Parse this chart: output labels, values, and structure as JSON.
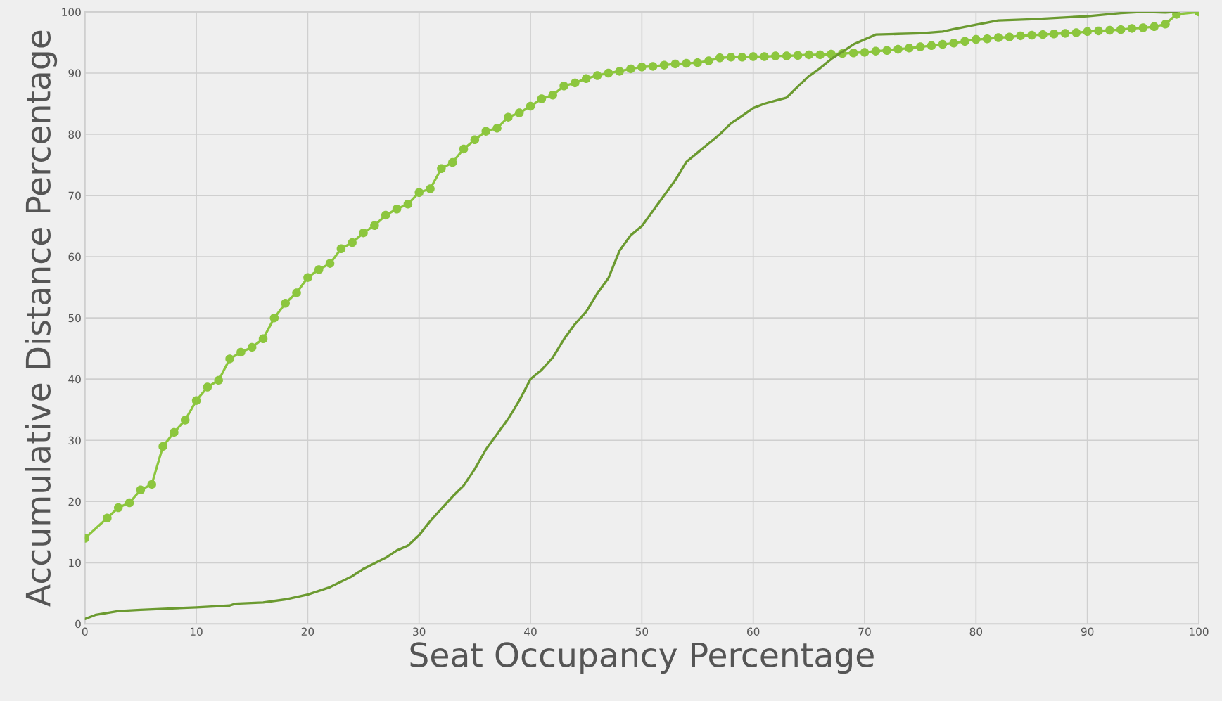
{
  "chart_data": {
    "type": "line",
    "xlabel": "Seat Occupancy Percentage",
    "ylabel": "Accumulative Distance Percentage",
    "xlim": [
      0,
      100
    ],
    "ylim": [
      0,
      100
    ],
    "xticks": [
      0,
      10,
      20,
      30,
      40,
      50,
      60,
      70,
      80,
      90,
      100
    ],
    "yticks": [
      0,
      10,
      20,
      30,
      40,
      50,
      60,
      70,
      80,
      90,
      100
    ],
    "grid": true,
    "series": [
      {
        "color": "#8cc63e",
        "marker": "circle",
        "x": [
          0,
          2,
          3,
          4,
          5,
          6,
          7,
          8,
          9,
          10,
          11,
          12,
          13,
          14,
          15,
          16,
          17,
          18,
          19,
          20,
          21,
          22,
          23,
          24,
          25,
          26,
          27,
          28,
          29,
          30,
          31,
          32,
          33,
          34,
          35,
          36,
          37,
          38,
          39,
          40,
          41,
          42,
          43,
          44,
          45,
          46,
          47,
          48,
          49,
          50,
          51,
          52,
          53,
          54,
          55,
          56,
          57,
          58,
          59,
          60,
          61,
          62,
          63,
          64,
          65,
          66,
          67,
          68,
          69,
          70,
          71,
          72,
          73,
          74,
          75,
          76,
          77,
          78,
          79,
          80,
          81,
          82,
          83,
          84,
          85,
          86,
          87,
          88,
          89,
          90,
          91,
          92,
          93,
          94,
          95,
          96,
          97,
          98,
          100
        ],
        "values": [
          14,
          17.3,
          19,
          19.8,
          21.9,
          22.8,
          29,
          31.3,
          33.3,
          36.5,
          38.7,
          39.8,
          43.3,
          44.4,
          45.2,
          46.6,
          50,
          52.4,
          54.1,
          56.6,
          57.9,
          58.9,
          61.3,
          62.3,
          63.9,
          65.1,
          66.8,
          67.8,
          68.6,
          70.5,
          71.1,
          74.4,
          75.4,
          77.6,
          79.1,
          80.5,
          81,
          82.8,
          83.5,
          84.6,
          85.8,
          86.4,
          87.9,
          88.4,
          89.1,
          89.6,
          90,
          90.3,
          90.7,
          91,
          91.1,
          91.3,
          91.5,
          91.6,
          91.7,
          92,
          92.5,
          92.6,
          92.6,
          92.7,
          92.7,
          92.8,
          92.8,
          92.9,
          93,
          93,
          93.1,
          93.2,
          93.3,
          93.4,
          93.6,
          93.7,
          93.9,
          94.1,
          94.3,
          94.5,
          94.7,
          94.9,
          95.2,
          95.5,
          95.6,
          95.8,
          95.9,
          96.1,
          96.2,
          96.3,
          96.4,
          96.5,
          96.6,
          96.8,
          96.9,
          97,
          97.1,
          97.3,
          97.4,
          97.6,
          98,
          99.6,
          100
        ]
      },
      {
        "color": "#6b9a30",
        "marker": "none",
        "x": [
          0,
          1,
          3,
          5,
          10,
          13,
          13.5,
          16,
          18,
          20,
          22,
          24,
          25,
          27,
          28,
          29,
          30,
          31,
          32,
          33,
          34,
          35,
          36,
          37,
          38,
          39,
          40,
          41,
          42,
          43,
          44,
          45,
          46,
          47,
          48,
          49,
          50,
          51,
          52,
          53,
          54,
          55,
          56,
          57,
          58,
          59,
          60,
          61,
          62,
          63,
          64,
          65,
          66,
          67,
          68,
          69,
          70,
          71,
          73,
          75,
          77,
          78,
          80,
          82,
          85,
          90,
          93,
          95,
          97,
          98
        ],
        "values": [
          0.8,
          1.5,
          2.1,
          2.3,
          2.7,
          3.0,
          3.3,
          3.5,
          4.0,
          4.8,
          6.0,
          7.8,
          9.0,
          10.8,
          12.0,
          12.8,
          14.5,
          16.8,
          18.8,
          20.8,
          22.6,
          25.3,
          28.5,
          31.0,
          33.5,
          36.5,
          40.0,
          41.5,
          43.5,
          46.5,
          49.0,
          51.0,
          54.0,
          56.5,
          61.0,
          63.5,
          65.0,
          67.5,
          70.0,
          72.5,
          75.5,
          77.0,
          78.5,
          80.0,
          81.8,
          83.0,
          84.3,
          85.0,
          85.5,
          86.0,
          87.8,
          89.5,
          90.8,
          92.3,
          93.5,
          94.7,
          95.5,
          96.3,
          96.4,
          96.5,
          96.8,
          97.2,
          97.9,
          98.6,
          98.8,
          99.3,
          99.8,
          100,
          99.9,
          100
        ]
      }
    ]
  }
}
